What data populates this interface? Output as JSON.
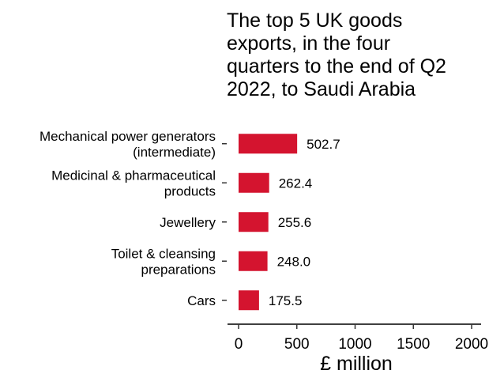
{
  "chart_data": {
    "type": "bar",
    "orientation": "horizontal",
    "title": "The top 5 UK goods\nexports, in the four\nquarters to the end of Q2\n2022, to Saudi Arabia",
    "categories": [
      [
        "Mechanical power generators",
        "(intermediate)"
      ],
      [
        "Medicinal & pharmaceutical",
        "products"
      ],
      [
        "Jewellery"
      ],
      [
        "Toilet & cleansing",
        "preparations"
      ],
      [
        "Cars"
      ]
    ],
    "values": [
      502.7,
      262.4,
      255.6,
      248.0,
      175.5
    ],
    "value_labels": [
      "502.7",
      "262.4",
      "255.6",
      "248.0",
      "175.5"
    ],
    "xlabel": "£ million",
    "ylabel": "",
    "xlim": [
      0,
      2000
    ],
    "xticks": [
      0,
      500,
      1000,
      1500,
      2000
    ],
    "bar_color": "#d4142f",
    "grid": false,
    "legend": "none"
  }
}
